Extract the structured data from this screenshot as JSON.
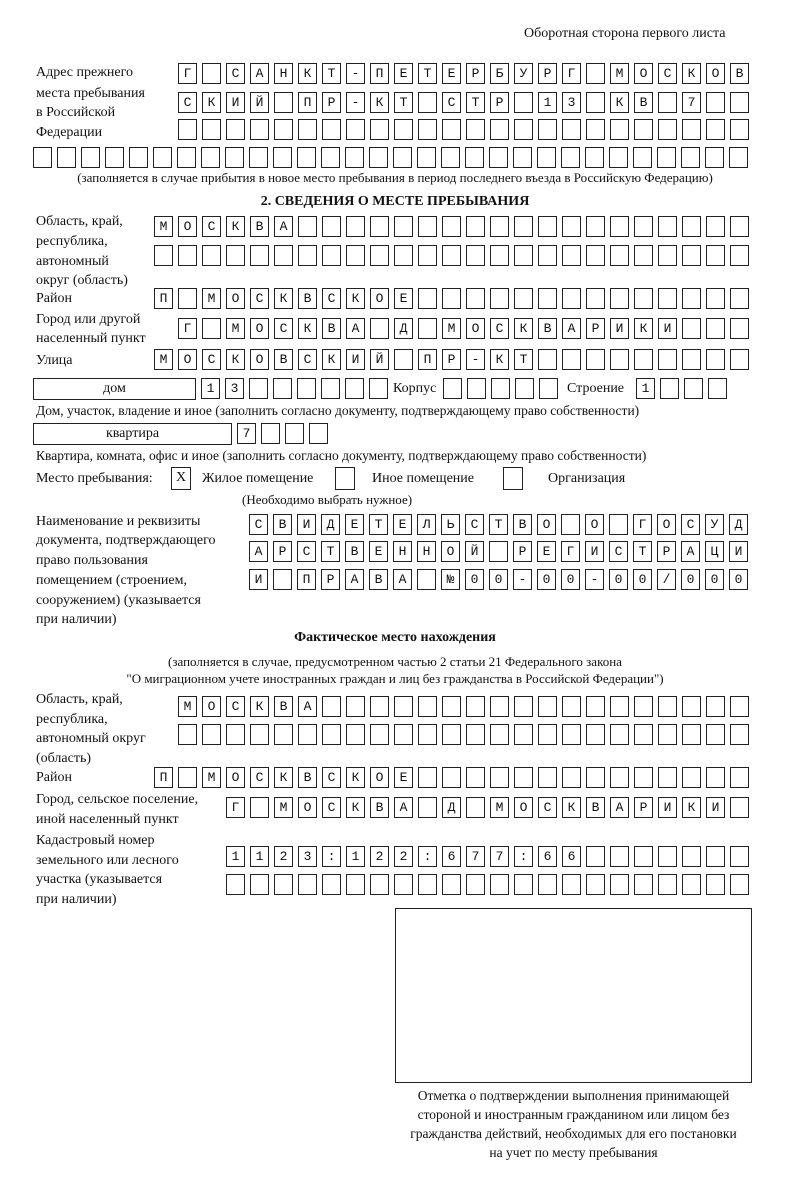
{
  "header": {
    "side_label": "Оборотная сторона первого листа"
  },
  "prev_address": {
    "label": [
      "Адрес прежнего",
      "места пребывания",
      "в Российской",
      "Федерации"
    ],
    "rows": [
      "Г САНКТ-ПЕТЕРБУРГ МОСКОВ",
      "СКИЙ ПР-КТ СТР 13 КВ 7  ",
      "                        ",
      "                              "
    ],
    "note": "(заполняется в случае прибытия в новое место пребывания в период последнего въезда в Российскую Федерацию)"
  },
  "section2": {
    "title": "2. СВЕДЕНИЯ О МЕСТЕ ПРЕБЫВАНИЯ",
    "region_label": [
      "Область, край,",
      "республика,",
      "автономный",
      "округ (область)"
    ],
    "region_rows": [
      "МОСКВА                   ",
      "                         "
    ],
    "district_label": "Район",
    "district_row": "П МОСКВСКОЕ              ",
    "city_label": [
      "Город или другой",
      "населенный пункт"
    ],
    "city_row": "Г МОСКВА Д МОСКВАРИКИ   ",
    "street_label": "Улица",
    "street_row": "МОСКОВСКИЙ ПР-КТ         ",
    "house_type": "дом",
    "house_row": "13      ",
    "korpus_label": "Корпус",
    "korpus_row": "     ",
    "stroenie_label": "Строение",
    "stroenie_row": "1   ",
    "house_note": "Дом, участок, владение и иное (заполнить согласно документу, подтверждающему право собственности)",
    "flat_type": "квартира",
    "flat_row": "7   ",
    "flat_note": "Квартира, комната, офис и иное (заполнить согласно документу, подтверждающему право собственности)",
    "stay_label": "Место пребывания:",
    "stay_options": [
      {
        "label": "Жилое помещение",
        "mark": "X"
      },
      {
        "label": "Иное помещение",
        "mark": ""
      },
      {
        "label": "Организация",
        "mark": ""
      }
    ],
    "stay_note": "(Необходимо выбрать нужное)",
    "doc_label": [
      "Наименование и реквизиты",
      "документа, подтверждающего",
      "право пользования",
      "помещением (строением,",
      "сооружением) (указывается",
      "при наличии)"
    ],
    "doc_rows": [
      "СВИДЕТЕЛЬСТВО О ГОСУД",
      "АРСТВЕННОЙ РЕГИСТРАЦИ",
      "И ПРАВА №00-00-00/000"
    ]
  },
  "actual": {
    "title": "Фактическое место нахождения",
    "note": [
      "(заполняется в случае, предусмотренном частью 2 статьи 21 Федерального закона",
      "\"О миграционном учете иностранных граждан и лиц без гражданства в Российской Федерации\")"
    ],
    "region_label": [
      "Область, край,",
      "республика,",
      "автономный округ",
      "(область)"
    ],
    "region_rows": [
      "МОСКВА                  ",
      "                        "
    ],
    "district_label": "Район",
    "district_row": "П МОСКВСКОЕ              ",
    "city_label": [
      "Город, сельское поселение,",
      "иной населенный пункт"
    ],
    "city_row": "Г МОСКВА Д МОСКВАРИКИ ",
    "cadastral_label": [
      "Кадастровый номер",
      "земельного или лесного",
      "участка (указывается",
      "при наличии)"
    ],
    "cadastral_rows": [
      "1123:122:677:66       ",
      "                      "
    ]
  },
  "stamp": {
    "caption": [
      "Отметка о подтверждении выполнения принимающей",
      "стороной и иностранным гражданином или лицом без",
      "гражданства действий, необходимых для его постановки",
      "на учет по месту пребывания"
    ]
  }
}
